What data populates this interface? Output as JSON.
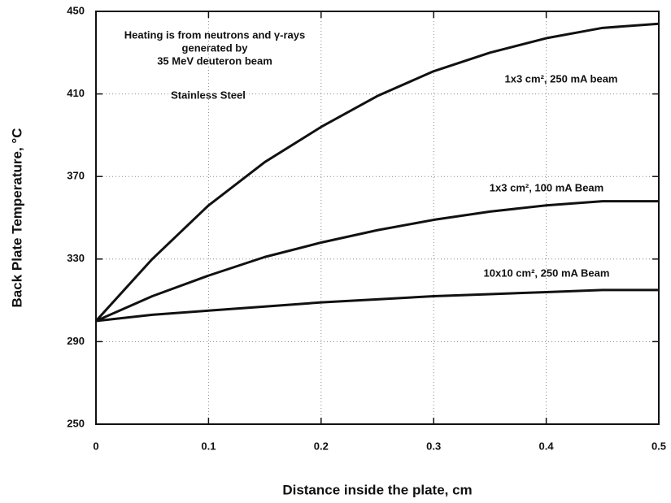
{
  "chart_data": {
    "type": "line",
    "xlabel": "Distance inside the plate, cm",
    "ylabel": "Back Plate Temperature, °C",
    "annotations": [
      "Heating is from neutrons and γ-rays",
      "generated by",
      "35 MeV deuteron beam",
      "Stainless Steel"
    ],
    "x": [
      0,
      0.05,
      0.1,
      0.15,
      0.2,
      0.25,
      0.3,
      0.35,
      0.4,
      0.45,
      0.5
    ],
    "series": [
      {
        "name": "1x3 cm², 250 mA beam",
        "color": "#111111",
        "values": [
          300,
          330,
          356,
          377,
          394,
          409,
          421,
          430,
          437,
          442,
          444
        ]
      },
      {
        "name": "1x3 cm², 100 mA Beam",
        "color": "#111111",
        "values": [
          300,
          312,
          322,
          331,
          338,
          344,
          349,
          353,
          356,
          358,
          358
        ]
      },
      {
        "name": "10x10 cm², 250 mA Beam",
        "color": "#111111",
        "values": [
          300,
          303,
          305,
          307,
          309,
          310.5,
          312,
          313,
          314,
          315,
          315
        ]
      }
    ],
    "xlim": [
      0,
      0.5
    ],
    "xticks": [
      0,
      0.1,
      0.2,
      0.3,
      0.4,
      0.5
    ],
    "ylim": [
      250,
      450
    ],
    "yticks": [
      250,
      290,
      330,
      370,
      410,
      450
    ],
    "grid": true
  }
}
